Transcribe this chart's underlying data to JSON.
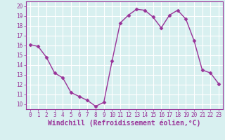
{
  "x": [
    0,
    1,
    2,
    3,
    4,
    5,
    6,
    7,
    8,
    9,
    10,
    11,
    12,
    13,
    14,
    15,
    16,
    17,
    18,
    19,
    20,
    21,
    22,
    23
  ],
  "y": [
    16.1,
    15.9,
    14.8,
    13.2,
    12.7,
    11.2,
    10.8,
    10.4,
    9.8,
    10.2,
    14.4,
    18.3,
    19.1,
    19.7,
    19.6,
    18.9,
    17.8,
    19.1,
    19.6,
    18.7,
    16.5,
    13.5,
    13.2,
    12.1
  ],
  "line_color": "#993399",
  "marker": "D",
  "markersize": 2.5,
  "linewidth": 1.0,
  "xlabel": "Windchill (Refroidissement éolien,°C)",
  "xlabel_fontsize": 7,
  "bg_color": "#d8f0f0",
  "grid_color": "#ffffff",
  "xlim": [
    -0.5,
    23.5
  ],
  "ylim": [
    9.5,
    20.5
  ],
  "yticks": [
    10,
    11,
    12,
    13,
    14,
    15,
    16,
    17,
    18,
    19,
    20
  ],
  "xticks": [
    0,
    1,
    2,
    3,
    4,
    5,
    6,
    7,
    8,
    9,
    10,
    11,
    12,
    13,
    14,
    15,
    16,
    17,
    18,
    19,
    20,
    21,
    22,
    23
  ],
  "tick_fontsize": 5.5,
  "tick_color": "#993399",
  "spine_color": "#993399"
}
